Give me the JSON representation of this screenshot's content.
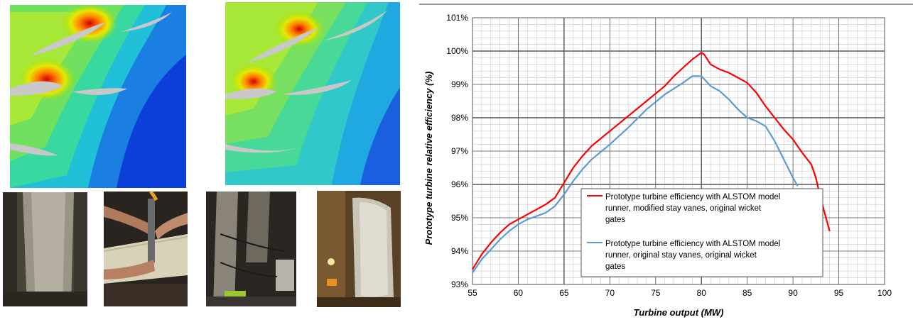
{
  "colors": {
    "series1": "#ff0000",
    "series2": "#5b9bd5",
    "grid_major": "#000000",
    "grid_minor": "#c8c8c8"
  },
  "photos": [
    {
      "name": "cfd-plot-original"
    },
    {
      "name": "cfd-plot-modified"
    },
    {
      "name": "photo-stay-vane-closeup"
    },
    {
      "name": "photo-grinding-work"
    },
    {
      "name": "photo-welding-equipment"
    },
    {
      "name": "photo-modified-stay-vane"
    }
  ],
  "chart_data": {
    "type": "line",
    "title": "",
    "xlabel": "Turbine output (MW)",
    "ylabel": "Prototype turbine relative efficiency (%)",
    "xlim": [
      55,
      100
    ],
    "ylim": [
      93,
      101
    ],
    "x_ticks": [
      55,
      60,
      65,
      70,
      75,
      80,
      85,
      90,
      95,
      100
    ],
    "y_ticks": [
      "93%",
      "94%",
      "95%",
      "96%",
      "97%",
      "98%",
      "99%",
      "100%",
      "101%"
    ],
    "grid": true,
    "legend_position": "lower-right",
    "series": [
      {
        "name": "Prototype turbine efficiency with ALSTOM model runner, modified stay vanes, original wicket gates",
        "color": "#ff0000",
        "points": [
          [
            55,
            93.45
          ],
          [
            56,
            93.9
          ],
          [
            57,
            94.25
          ],
          [
            58,
            94.55
          ],
          [
            59,
            94.8
          ],
          [
            60,
            94.95
          ],
          [
            61,
            95.1
          ],
          [
            62,
            95.25
          ],
          [
            63,
            95.4
          ],
          [
            64,
            95.6
          ],
          [
            65,
            96.05
          ],
          [
            66,
            96.5
          ],
          [
            67,
            96.85
          ],
          [
            68,
            97.15
          ],
          [
            70,
            97.6
          ],
          [
            72,
            98.05
          ],
          [
            74,
            98.5
          ],
          [
            76,
            98.95
          ],
          [
            77,
            99.25
          ],
          [
            78,
            99.5
          ],
          [
            79,
            99.75
          ],
          [
            80,
            99.95
          ],
          [
            80.3,
            99.9
          ],
          [
            81,
            99.6
          ],
          [
            82,
            99.45
          ],
          [
            83,
            99.35
          ],
          [
            84,
            99.2
          ],
          [
            85,
            99.05
          ],
          [
            86,
            98.75
          ],
          [
            87,
            98.35
          ],
          [
            88,
            98.0
          ],
          [
            89,
            97.65
          ],
          [
            90,
            97.35
          ],
          [
            91,
            96.95
          ],
          [
            92,
            96.6
          ],
          [
            92.5,
            96.2
          ],
          [
            93,
            95.6
          ],
          [
            93.5,
            95.1
          ],
          [
            94,
            94.6
          ]
        ]
      },
      {
        "name": "Prototype turbine efficiency with ALSTOM model runner, original stay vanes, original wicket gates",
        "color": "#5b9bd5",
        "points": [
          [
            55,
            93.35
          ],
          [
            56,
            93.75
          ],
          [
            57,
            94.05
          ],
          [
            58,
            94.35
          ],
          [
            59,
            94.6
          ],
          [
            60,
            94.8
          ],
          [
            61,
            94.95
          ],
          [
            62,
            95.05
          ],
          [
            63,
            95.15
          ],
          [
            64,
            95.35
          ],
          [
            65,
            95.7
          ],
          [
            66,
            96.1
          ],
          [
            67,
            96.45
          ],
          [
            68,
            96.75
          ],
          [
            70,
            97.2
          ],
          [
            72,
            97.7
          ],
          [
            74,
            98.25
          ],
          [
            76,
            98.7
          ],
          [
            78,
            99.05
          ],
          [
            79,
            99.25
          ],
          [
            80,
            99.25
          ],
          [
            80.5,
            99.1
          ],
          [
            81,
            98.95
          ],
          [
            82,
            98.8
          ],
          [
            83,
            98.55
          ],
          [
            84,
            98.25
          ],
          [
            85,
            98.0
          ],
          [
            86,
            97.9
          ],
          [
            87,
            97.75
          ],
          [
            88,
            97.3
          ],
          [
            89,
            96.75
          ],
          [
            90,
            96.2
          ],
          [
            90.5,
            95.95
          ]
        ]
      }
    ]
  }
}
